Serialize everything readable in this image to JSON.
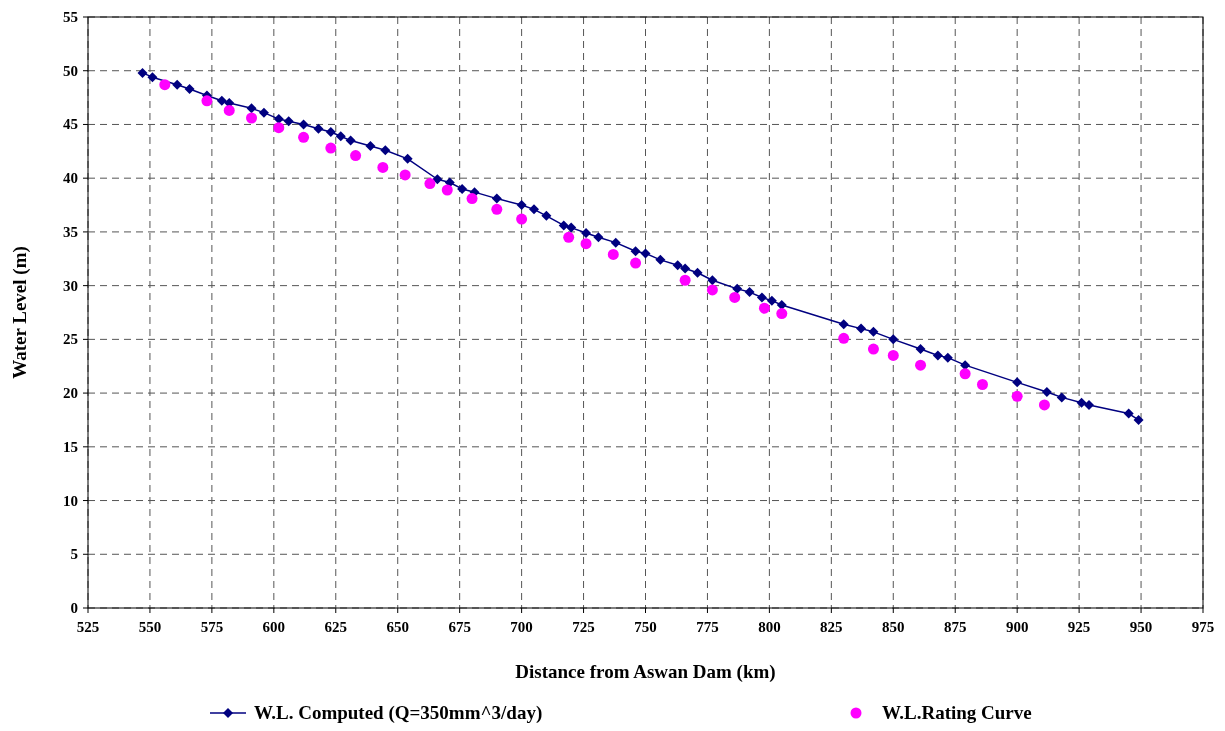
{
  "chart_data": {
    "type": "line",
    "xlabel": "Distance from Aswan Dam (km)",
    "ylabel": "Water Level (m)",
    "xlim": [
      525,
      975
    ],
    "xticks": [
      525,
      550,
      575,
      600,
      625,
      650,
      675,
      700,
      725,
      750,
      775,
      800,
      825,
      850,
      875,
      900,
      925,
      950,
      975
    ],
    "ylim": [
      0,
      55
    ],
    "yticks": [
      0,
      5,
      10,
      15,
      20,
      25,
      30,
      35,
      40,
      45,
      50,
      55
    ],
    "grid": true,
    "legend": "bottom",
    "series": [
      {
        "name": "W.L. Computed (Q=350mm^3/day)",
        "color": "#000080",
        "marker": "diamond",
        "line_style": "solid",
        "x": [
          547,
          551,
          561,
          566,
          573,
          579,
          582,
          591,
          596,
          602,
          606,
          612,
          618,
          623,
          627,
          631,
          639,
          645,
          654,
          666,
          671,
          676,
          681,
          690,
          700,
          705,
          710,
          717,
          720,
          726,
          731,
          738,
          746,
          750,
          756,
          763,
          766,
          771,
          777,
          787,
          792,
          797,
          801,
          805,
          830,
          837,
          842,
          850,
          861,
          868,
          872,
          879,
          900,
          912,
          918,
          926,
          929,
          945,
          949
        ],
        "values": [
          49.8,
          49.4,
          48.7,
          48.3,
          47.7,
          47.2,
          47.0,
          46.5,
          46.1,
          45.5,
          45.3,
          45.0,
          44.6,
          44.3,
          43.9,
          43.5,
          43.0,
          42.6,
          41.8,
          39.9,
          39.6,
          39.0,
          38.7,
          38.1,
          37.5,
          37.1,
          36.5,
          35.6,
          35.4,
          34.9,
          34.5,
          34.0,
          33.2,
          33.0,
          32.4,
          31.9,
          31.6,
          31.2,
          30.5,
          29.7,
          29.4,
          28.9,
          28.6,
          28.2,
          26.4,
          26.0,
          25.7,
          25.0,
          24.1,
          23.5,
          23.3,
          22.6,
          21.0,
          20.1,
          19.6,
          19.1,
          18.9,
          18.1,
          17.5
        ]
      },
      {
        "name": "W.L.Rating Curve",
        "type": "scatter",
        "color": "#ff00ff",
        "marker": "circle",
        "x": [
          556,
          573,
          582,
          591,
          602,
          612,
          623,
          633,
          644,
          653,
          663,
          670,
          680,
          690,
          700,
          719,
          726,
          737,
          746,
          766,
          777,
          786,
          798,
          805,
          830,
          842,
          850,
          861,
          879,
          886,
          900,
          911
        ],
        "values": [
          48.7,
          47.2,
          46.3,
          45.6,
          44.7,
          43.8,
          42.8,
          42.1,
          41.0,
          40.3,
          39.5,
          38.9,
          38.1,
          37.1,
          36.2,
          34.5,
          33.9,
          32.9,
          32.1,
          30.5,
          29.6,
          28.9,
          27.9,
          27.4,
          25.1,
          24.1,
          23.5,
          22.6,
          21.8,
          20.8,
          19.7,
          18.9
        ]
      }
    ]
  }
}
